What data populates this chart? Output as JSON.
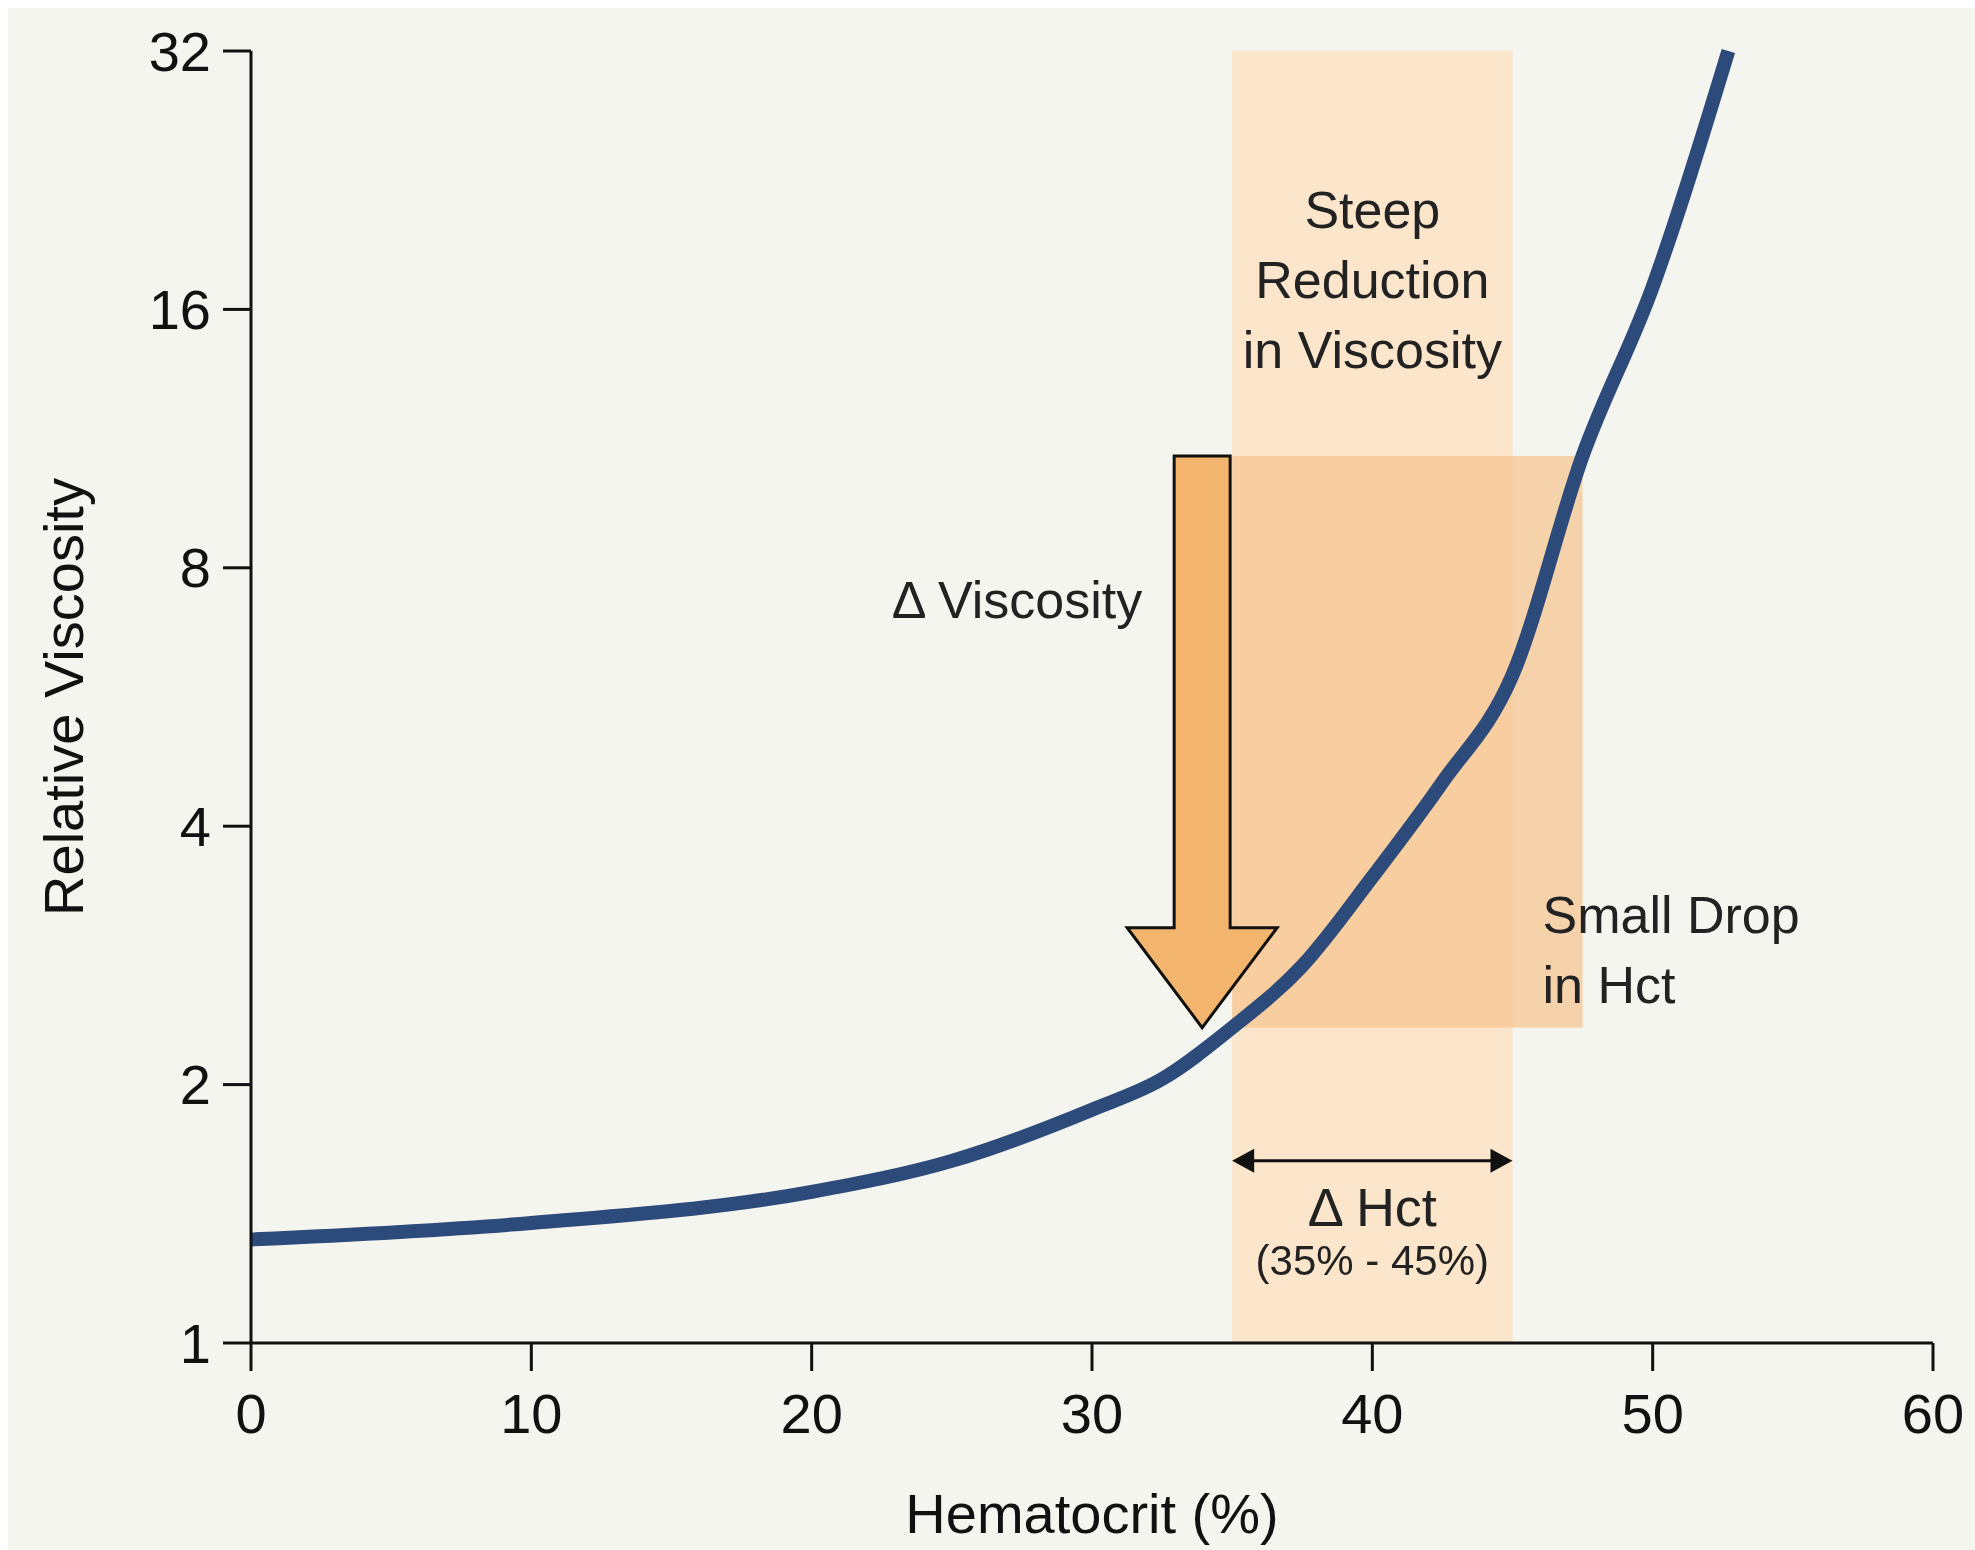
{
  "chart_data": {
    "type": "line",
    "xlabel": "Hematocrit (%)",
    "ylabel": "Relative Viscosity",
    "log": true,
    "grid": false,
    "marker": "none",
    "line_style": "solid",
    "x": [
      0,
      10,
      20,
      25,
      30,
      32.5,
      35,
      37.5,
      40,
      42.5,
      45,
      47.5,
      50,
      52.7
    ],
    "series": [
      {
        "color": "#2c4a7a",
        "values": [
          1.32,
          1.38,
          1.5,
          1.63,
          1.87,
          2.03,
          2.33,
          2.75,
          3.49,
          4.5,
          6.0,
          10.8,
          17,
          32
        ]
      }
    ],
    "xlim": [
      0,
      60
    ],
    "xticks": [
      0,
      10,
      20,
      30,
      40,
      50,
      60
    ],
    "ylim": [
      1,
      32
    ],
    "yticks": [
      1,
      2,
      4,
      8,
      16,
      32
    ],
    "bands": [
      {
        "axis": "x",
        "from": 35,
        "to": 45,
        "color": "#fbe2c4"
      },
      {
        "axis": "y",
        "from": 2.33,
        "to": 10.8,
        "color": "#f6c38c"
      }
    ],
    "annotations": [
      "Steep Reduction in Viscosity",
      "Δ Viscosity",
      "Small Drop in Hct",
      "Δ Hct",
      "(35% - 45%)"
    ]
  }
}
